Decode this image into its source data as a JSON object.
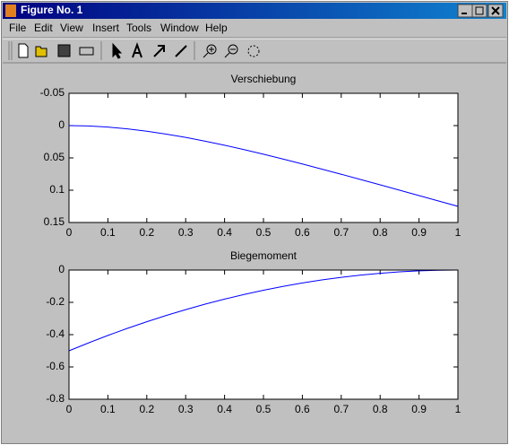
{
  "window": {
    "title": "Figure No. 1",
    "menu": [
      "File",
      "Edit",
      "View",
      "Insert",
      "Tools",
      "Window",
      "Help"
    ]
  },
  "chart_data": [
    {
      "type": "line",
      "title": "Verschiebung",
      "x": [
        0,
        0.05,
        0.1,
        0.15,
        0.2,
        0.25,
        0.3,
        0.35,
        0.4,
        0.45,
        0.5,
        0.55,
        0.6,
        0.65,
        0.7,
        0.75,
        0.8,
        0.85,
        0.9,
        0.95,
        1
      ],
      "series": [
        {
          "color": "#0000ff",
          "values": [
            0,
            0.0006,
            0.0023,
            0.0051,
            0.0087,
            0.0132,
            0.0183,
            0.0241,
            0.0304,
            0.0371,
            0.0443,
            0.0517,
            0.0594,
            0.0673,
            0.0753,
            0.0835,
            0.0917,
            0.1,
            0.1083,
            0.1167,
            0.125
          ]
        }
      ],
      "xlim": [
        0,
        1
      ],
      "xticks": [
        0,
        0.1,
        0.2,
        0.3,
        0.4,
        0.5,
        0.6,
        0.7,
        0.8,
        0.9,
        1
      ],
      "ylim": [
        -0.05,
        0.15
      ],
      "yticks": [
        -0.05,
        0,
        0.05,
        0.1,
        0.15
      ],
      "y_reverse": true
    },
    {
      "type": "line",
      "title": "Biegemoment",
      "x": [
        0,
        0.05,
        0.1,
        0.15,
        0.2,
        0.25,
        0.3,
        0.35,
        0.4,
        0.45,
        0.5,
        0.55,
        0.6,
        0.65,
        0.7,
        0.75,
        0.8,
        0.85,
        0.9,
        0.95,
        1
      ],
      "series": [
        {
          "color": "#0000ff",
          "values": [
            -0.5,
            -0.4513,
            -0.405,
            -0.3613,
            -0.32,
            -0.2813,
            -0.245,
            -0.2113,
            -0.18,
            -0.1513,
            -0.125,
            -0.1013,
            -0.08,
            -0.0613,
            -0.045,
            -0.0313,
            -0.02,
            -0.0113,
            -0.005,
            -0.0013,
            0
          ]
        }
      ],
      "xlim": [
        0,
        1
      ],
      "xticks": [
        0,
        0.1,
        0.2,
        0.3,
        0.4,
        0.5,
        0.6,
        0.7,
        0.8,
        0.9,
        1
      ],
      "ylim": [
        -0.8,
        0
      ],
      "yticks": [
        -0.8,
        -0.6,
        -0.4,
        -0.2,
        0
      ],
      "y_reverse": false
    }
  ]
}
